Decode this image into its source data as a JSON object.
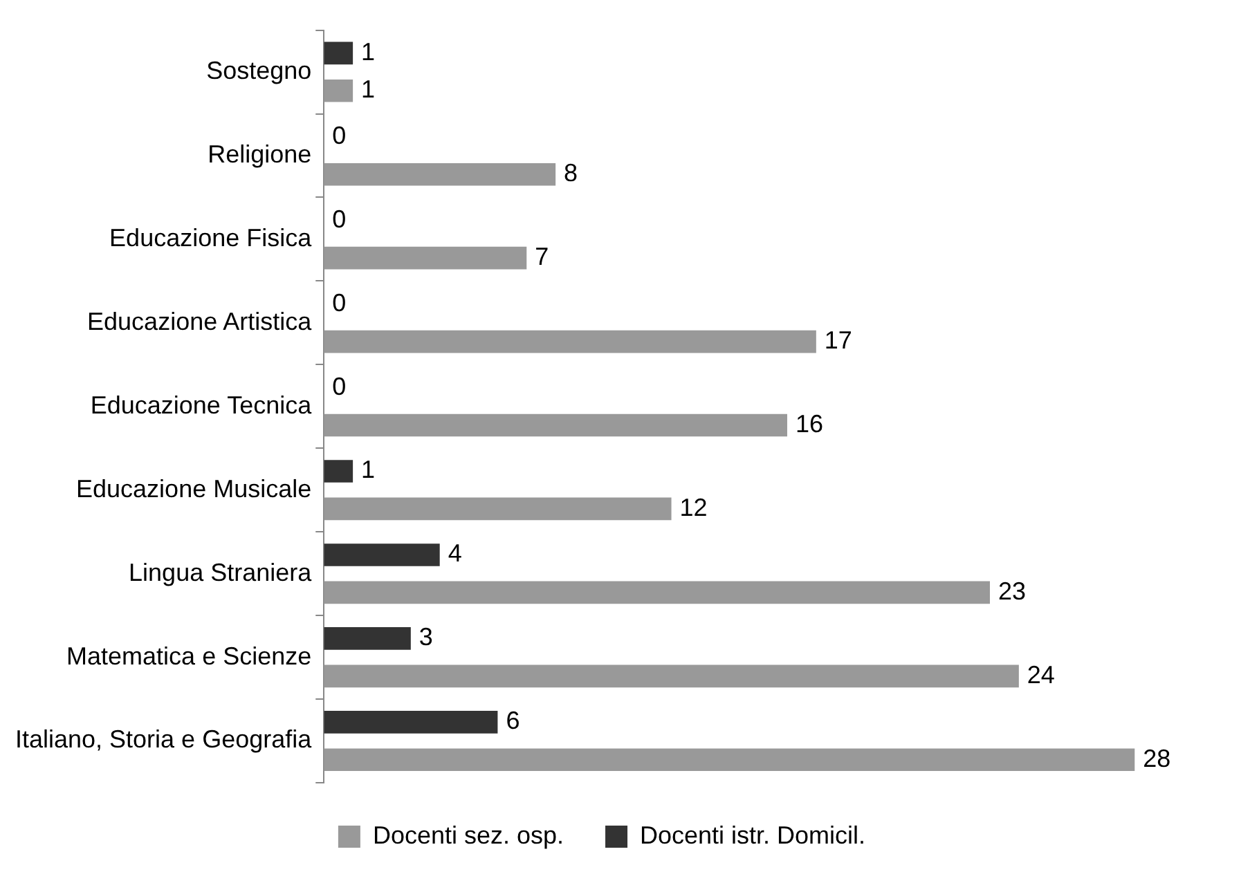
{
  "chart_data": {
    "type": "bar",
    "orientation": "horizontal",
    "categories": [
      "Sostegno",
      "Religione",
      "Educazione Fisica",
      "Educazione Artistica",
      "Educazione Tecnica",
      "Educazione Musicale",
      "Lingua Straniera",
      "Matematica e Scienze",
      "Italiano, Storia e Geografia"
    ],
    "series": [
      {
        "name": "Docenti istr. Domicil.",
        "color": "#333333",
        "values": [
          1,
          0,
          0,
          0,
          0,
          1,
          4,
          3,
          6
        ]
      },
      {
        "name": "Docenti sez. osp.",
        "color": "#999999",
        "values": [
          1,
          8,
          7,
          17,
          16,
          12,
          23,
          24,
          28
        ]
      }
    ],
    "data_labels": true,
    "legend": "bottom",
    "grid": false
  }
}
